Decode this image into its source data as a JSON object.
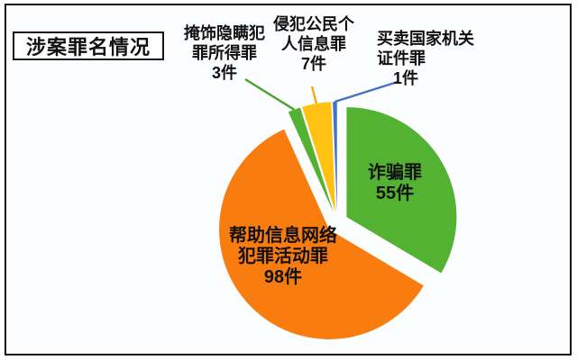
{
  "canvas": {
    "background": "#fcfdff",
    "frame_border_color": "#141414"
  },
  "title": {
    "text": "涉案罪名情况"
  },
  "chart_data": {
    "type": "pie",
    "title": "涉案罪名情况",
    "unit": "件",
    "total": 164,
    "start_angle_deg": 0,
    "direction": "clockwise",
    "exploded": true,
    "legend": "none",
    "slices": [
      {
        "label": "诈骗罪",
        "value": 55,
        "color": "#54B232",
        "label_text": "诈骗罪\n55件",
        "label_placement": "inside"
      },
      {
        "label": "帮助信息网络犯罪活动罪",
        "value": 98,
        "color": "#F87D0E",
        "label_text": "帮助信息网络\n犯罪活动罪\n98件",
        "label_placement": "inside"
      },
      {
        "label": "掩饰隐瞒犯罪所得罪",
        "value": 3,
        "color": "#54B232",
        "label_text": "掩饰隐瞒犯\n罪所得罪\n3件",
        "label_placement": "outside",
        "leader_color": "#4CA32C"
      },
      {
        "label": "侵犯公民个人信息罪",
        "value": 7,
        "color": "#FFC112",
        "label_text": "侵犯公民个\n人信息罪\n7件",
        "label_placement": "outside",
        "leader_color": "#EFAC16"
      },
      {
        "label": "买卖国家机关证件罪",
        "value": 1,
        "color": "#4472C4",
        "label_text": "买卖国家机关\n证件罪\n　1件",
        "label_placement": "outside",
        "leader_color": "#4472C4"
      }
    ]
  }
}
